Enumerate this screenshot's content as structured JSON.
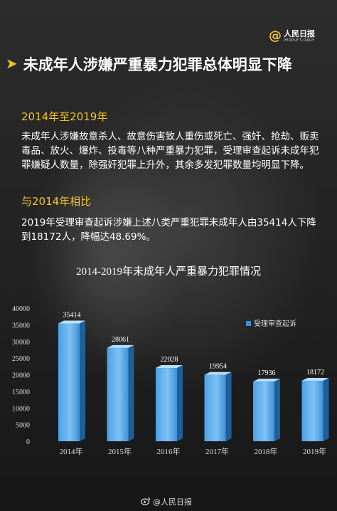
{
  "logo": {
    "at": "@",
    "name": "人民日报",
    "sub": "PEOPLE'S DAILY"
  },
  "headline": "未成年人涉嫌严重暴力犯罪总体明显下降",
  "section1": {
    "heading": "2014年至2019年",
    "body": "未成年人涉嫌故意杀人、故意伤害致人重伤或死亡、强奸、抢劫、贩卖毒品、放火、爆炸、投毒等八种严重暴力犯罪，受理审查起诉未成年犯罪嫌疑人数量，除强奸犯罪上升外，其余多发犯罪数量均明显下降。"
  },
  "section2": {
    "heading": "与2014年相比",
    "body": "2019年受理审查起诉涉嫌上述八类严重犯罪未成年人由35414人下降到18172人，降幅达48.69%。"
  },
  "footer": {
    "text": "@人民日报",
    "icon": "weibo-icon"
  },
  "colors": {
    "accent": "#f0c42a",
    "bar": "#3d8fd6",
    "bar_light": "#6db6f0",
    "bar_dark": "#1f5f99"
  },
  "chart_data": {
    "type": "bar",
    "title": "2014-2019年未成年人严重暴力犯罪情况",
    "categories": [
      "2014年",
      "2015年",
      "2016年",
      "2017年",
      "2018年",
      "2019年"
    ],
    "series": [
      {
        "name": "受理审查起诉",
        "values": [
          35414,
          28061,
          22028,
          19954,
          17936,
          18172
        ]
      }
    ],
    "yticks": [
      0,
      5000,
      10000,
      15000,
      20000,
      25000,
      30000,
      35000,
      40000
    ],
    "ylim": [
      0,
      40000
    ],
    "grid": false,
    "legend": "right",
    "data_labels": true
  }
}
